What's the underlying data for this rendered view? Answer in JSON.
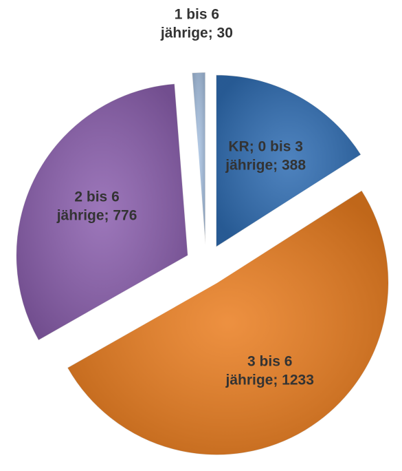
{
  "chart_data": {
    "type": "pie",
    "values": [
      388,
      1233,
      776,
      30
    ],
    "value_labels": [
      [
        "KR; 0 bis 3",
        "jährige; 388"
      ],
      [
        "3 bis 6",
        "jährige; 1233"
      ],
      [
        "2 bis 6",
        "jährige; 776"
      ],
      [
        "1 bis 6",
        "jährige; 30"
      ]
    ],
    "colors": [
      "#2f6db3",
      "#ea7d1f",
      "#8b5fae",
      "#a9c3e3"
    ]
  }
}
